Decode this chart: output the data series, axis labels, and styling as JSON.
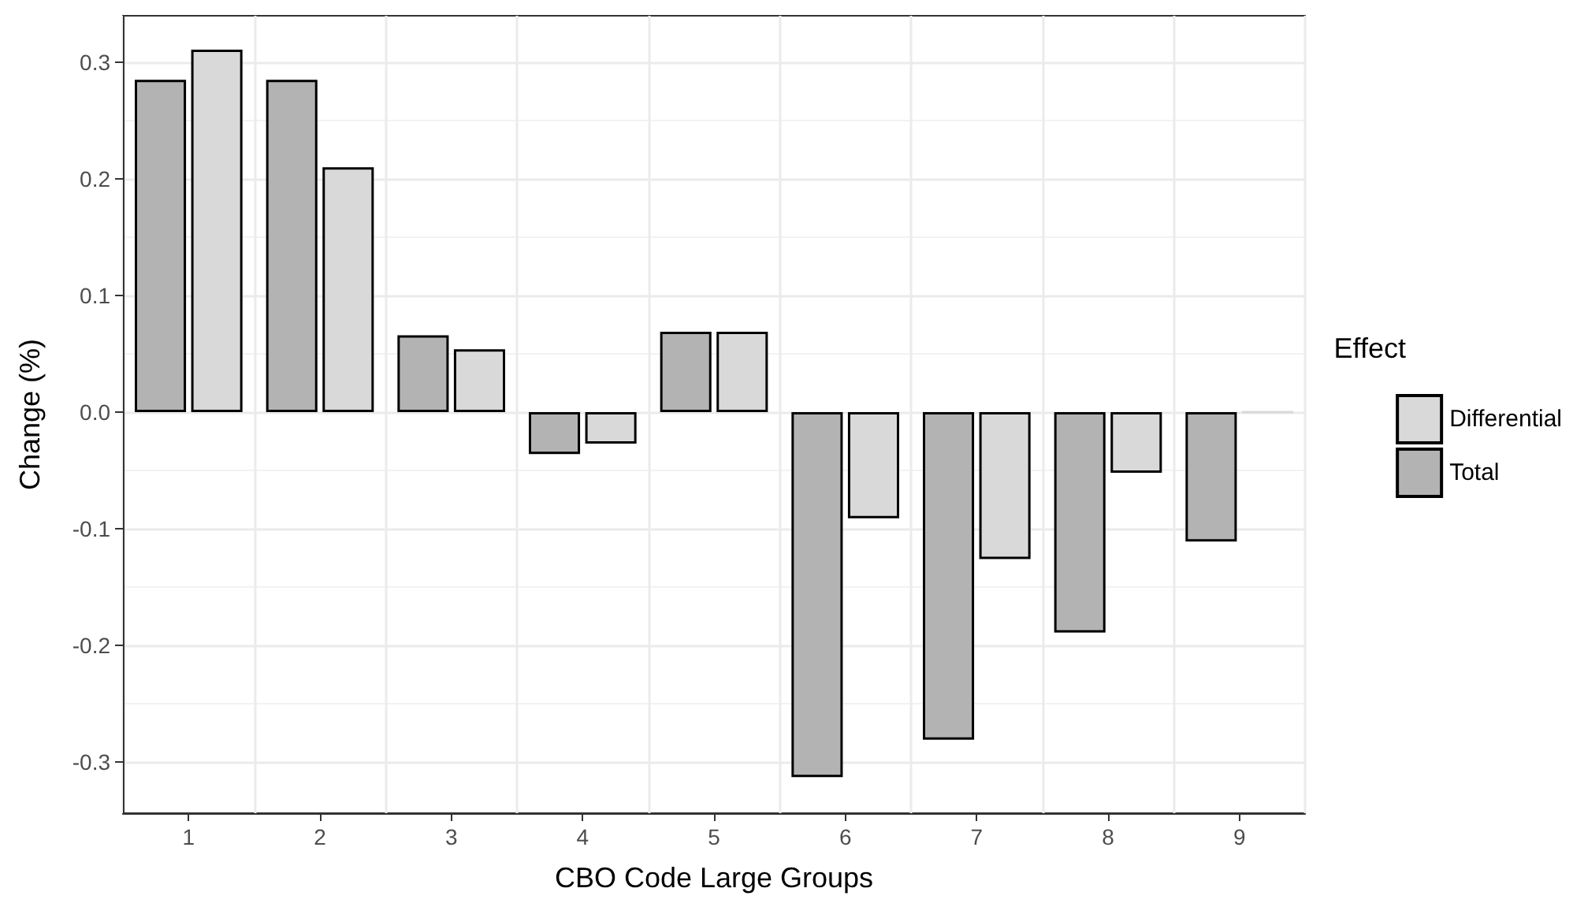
{
  "chart_data": {
    "type": "bar",
    "xlabel": "CBO Code Large Groups",
    "ylabel": "Change (%)",
    "legend_title": "Effect",
    "categories": [
      "1",
      "2",
      "3",
      "4",
      "5",
      "6",
      "7",
      "8",
      "9"
    ],
    "series": [
      {
        "name": "Total",
        "color": "#b3b3b3",
        "values": [
          0.285,
          0.285,
          0.066,
          -0.036,
          0.069,
          -0.313,
          -0.281,
          -0.189,
          -0.111
        ]
      },
      {
        "name": "Differential",
        "color": "#d9d9d9",
        "values": [
          0.311,
          0.21,
          0.054,
          -0.027,
          0.069,
          -0.091,
          -0.126,
          -0.052,
          0
        ]
      }
    ],
    "ylim": [
      -0.344,
      0.34
    ],
    "yticks": [
      -0.3,
      -0.2,
      -0.1,
      {
        "value": 0,
        "label": "0.0"
      },
      0.1,
      0.2,
      0.3
    ],
    "grid": true,
    "legend": "right"
  }
}
